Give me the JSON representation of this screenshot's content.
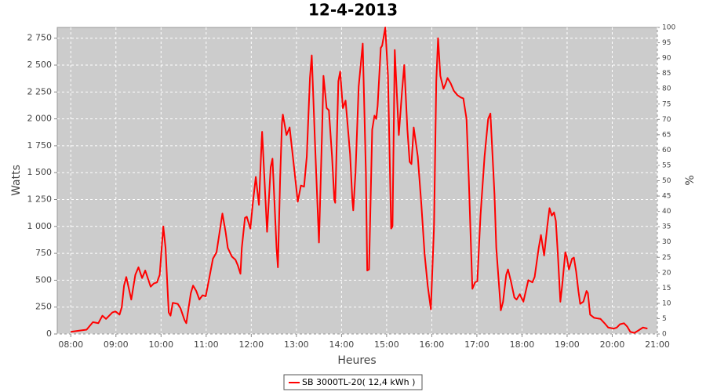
{
  "chart_data": {
    "type": "line",
    "title": "12-4-2013",
    "x_label": "Heures",
    "y_label": "Watts",
    "y2_label": "%",
    "xlim": [
      7.7,
      21.0
    ],
    "xticks": [
      {
        "value": 8,
        "label": "08:00"
      },
      {
        "value": 9,
        "label": "09:00"
      },
      {
        "value": 10,
        "label": "10:00"
      },
      {
        "value": 11,
        "label": "11:00"
      },
      {
        "value": 12,
        "label": "12:00"
      },
      {
        "value": 13,
        "label": "13:00"
      },
      {
        "value": 14,
        "label": "14:00"
      },
      {
        "value": 15,
        "label": "15:00"
      },
      {
        "value": 16,
        "label": "16:00"
      },
      {
        "value": 17,
        "label": "17:00"
      },
      {
        "value": 18,
        "label": "18:00"
      },
      {
        "value": 19,
        "label": "19:00"
      },
      {
        "value": 20,
        "label": "20:00"
      },
      {
        "value": 21,
        "label": "21:00"
      }
    ],
    "ylim": [
      0,
      2850
    ],
    "yticks": [
      0,
      250,
      500,
      750,
      {
        "value": 1000,
        "label": "1 000"
      },
      {
        "value": 1250,
        "label": "1 250"
      },
      {
        "value": 1500,
        "label": "1 500"
      },
      {
        "value": 1750,
        "label": "1 750"
      },
      {
        "value": 2000,
        "label": "2 000"
      },
      {
        "value": 2250,
        "label": "2 250"
      },
      {
        "value": 2500,
        "label": "2 500"
      },
      {
        "value": 2750,
        "label": "2 750"
      }
    ],
    "y2lim": [
      0,
      100
    ],
    "y2ticks": [
      0,
      5,
      10,
      15,
      20,
      25,
      30,
      35,
      40,
      45,
      50,
      55,
      60,
      65,
      70,
      75,
      80,
      85,
      90,
      95,
      100
    ],
    "grid": true,
    "legend_position": "bottom",
    "x": [
      8.0,
      8.17,
      8.35,
      8.49,
      8.61,
      8.7,
      8.78,
      8.92,
      8.99,
      9.08,
      9.13,
      9.18,
      9.23,
      9.34,
      9.43,
      9.5,
      9.58,
      9.65,
      9.77,
      9.84,
      9.91,
      9.97,
      10.05,
      10.1,
      10.17,
      10.21,
      10.26,
      10.37,
      10.43,
      10.52,
      10.56,
      10.66,
      10.71,
      10.78,
      10.85,
      10.92,
      10.99,
      11.06,
      11.15,
      11.23,
      11.36,
      11.43,
      11.48,
      11.57,
      11.65,
      11.7,
      11.76,
      11.79,
      11.86,
      11.9,
      11.98,
      12.03,
      12.1,
      12.17,
      12.23,
      12.24,
      12.35,
      12.43,
      12.47,
      12.56,
      12.59,
      12.64,
      12.68,
      12.7,
      12.78,
      12.85,
      12.94,
      13.03,
      13.1,
      13.17,
      13.23,
      13.3,
      13.34,
      13.41,
      13.5,
      13.57,
      13.6,
      13.67,
      13.72,
      13.79,
      13.84,
      13.86,
      13.93,
      13.97,
      14.03,
      14.09,
      14.19,
      14.24,
      14.26,
      14.31,
      14.38,
      14.47,
      14.54,
      14.57,
      14.61,
      14.68,
      14.73,
      14.77,
      14.8,
      14.87,
      14.9,
      14.97,
      15.03,
      15.1,
      15.13,
      15.18,
      15.27,
      15.34,
      15.39,
      15.46,
      15.51,
      15.55,
      15.6,
      15.69,
      15.77,
      15.84,
      15.91,
      15.98,
      16.05,
      16.1,
      16.14,
      16.19,
      16.26,
      16.31,
      16.35,
      16.42,
      16.49,
      16.57,
      16.64,
      16.7,
      16.77,
      16.82,
      16.87,
      16.9,
      16.96,
      17.01,
      17.08,
      17.17,
      17.25,
      17.3,
      17.39,
      17.43,
      17.5,
      17.53,
      17.58,
      17.65,
      17.69,
      17.76,
      17.83,
      17.88,
      17.95,
      18.03,
      18.14,
      18.23,
      18.28,
      18.37,
      18.42,
      18.49,
      18.56,
      18.61,
      18.66,
      18.71,
      18.75,
      18.8,
      18.85,
      18.89,
      18.96,
      18.99,
      19.04,
      19.11,
      19.15,
      19.2,
      19.25,
      19.29,
      19.36,
      19.43,
      19.46,
      19.51,
      19.6,
      19.74,
      19.83,
      19.91,
      20.03,
      20.1,
      20.17,
      20.26,
      20.33,
      20.4,
      20.49,
      20.57,
      20.68,
      20.78
    ],
    "series": [
      {
        "name": "SB 3000TL-20( 12,4 kWh )",
        "color": "#ff0000",
        "values": [
          20,
          30,
          40,
          110,
          100,
          170,
          140,
          200,
          210,
          180,
          250,
          450,
          530,
          320,
          550,
          620,
          520,
          590,
          440,
          470,
          480,
          550,
          1000,
          800,
          200,
          170,
          290,
          280,
          240,
          130,
          100,
          380,
          450,
          400,
          320,
          360,
          350,
          500,
          700,
          760,
          1120,
          950,
          800,
          720,
          690,
          640,
          560,
          800,
          1080,
          1090,
          980,
          1200,
          1460,
          1200,
          1800,
          1880,
          950,
          1550,
          1630,
          800,
          620,
          1450,
          1960,
          2040,
          1850,
          1920,
          1580,
          1230,
          1380,
          1370,
          1650,
          2380,
          2590,
          1800,
          850,
          1900,
          2400,
          2100,
          2080,
          1650,
          1250,
          1220,
          2350,
          2440,
          2100,
          2170,
          1670,
          1250,
          1150,
          1500,
          2300,
          2700,
          1500,
          590,
          600,
          1900,
          2030,
          2000,
          2120,
          2660,
          2680,
          2850,
          2400,
          980,
          1000,
          2640,
          1850,
          2250,
          2500,
          1900,
          1600,
          1580,
          1920,
          1650,
          1200,
          750,
          450,
          230,
          1000,
          2350,
          2750,
          2400,
          2280,
          2330,
          2380,
          2330,
          2260,
          2220,
          2200,
          2190,
          2000,
          1450,
          800,
          420,
          480,
          490,
          1100,
          1650,
          2000,
          2050,
          1300,
          800,
          400,
          220,
          300,
          550,
          600,
          480,
          340,
          320,
          370,
          300,
          500,
          480,
          530,
          800,
          920,
          730,
          1000,
          1170,
          1100,
          1130,
          1050,
          700,
          300,
          450,
          760,
          720,
          600,
          700,
          710,
          580,
          400,
          280,
          300,
          400,
          380,
          180,
          150,
          140,
          100,
          60,
          50,
          60,
          90,
          100,
          70,
          20,
          10,
          30,
          60,
          50
        ]
      }
    ]
  }
}
